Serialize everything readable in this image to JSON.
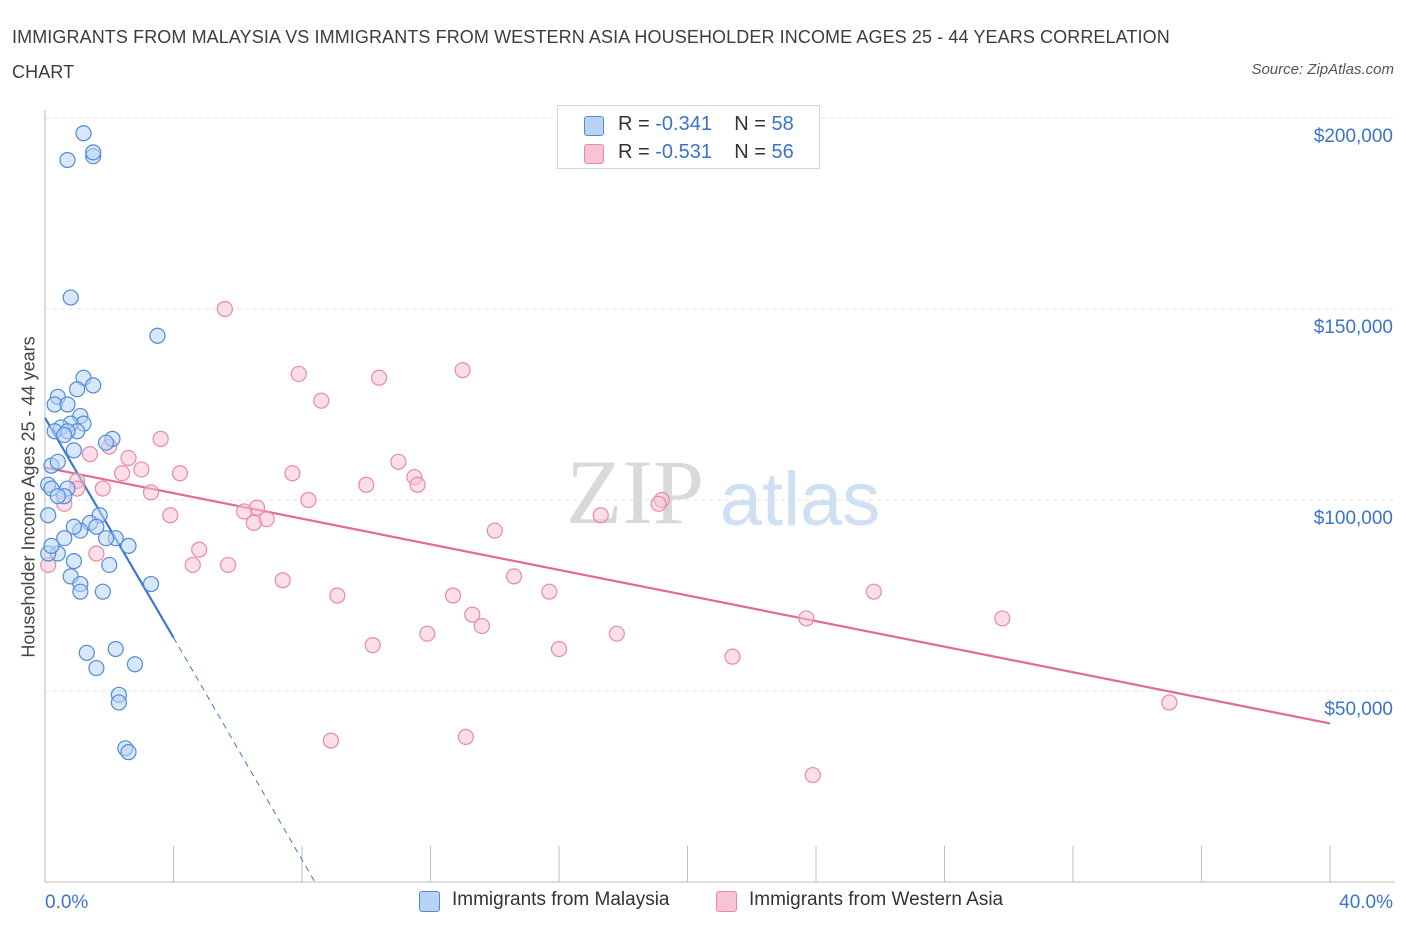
{
  "header": {
    "title": "IMMIGRANTS FROM MALAYSIA VS IMMIGRANTS FROM WESTERN ASIA HOUSEHOLDER INCOME AGES 25 - 44 YEARS CORRELATION CHART",
    "source": "Source: ZipAtlas.com"
  },
  "watermark": {
    "zip": "ZIP",
    "atlas": "atlas"
  },
  "legend": {
    "r_label": "R =",
    "n_label": "N =",
    "malaysia": {
      "r": "-0.341",
      "n": "58"
    },
    "western_asia": {
      "r": "-0.531",
      "n": "56"
    }
  },
  "colors": {
    "malaysia_fill": "#b9d3f5",
    "malaysia_stroke": "#4f8bd8",
    "malaysia_line": "#3a78d2",
    "western_asia_fill": "#f7c3d5",
    "western_asia_stroke": "#e889aa",
    "western_asia_line": "#e2699a",
    "axis_label": "#3b74c9",
    "grid": "#e3e3e3"
  },
  "chart_data": {
    "type": "scatter",
    "title": "IMMIGRANTS FROM MALAYSIA VS IMMIGRANTS FROM WESTERN ASIA HOUSEHOLDER INCOME AGES 25 - 44 YEARS CORRELATION CHART",
    "xlabel": "",
    "ylabel": "Householder Income Ages 25 - 44 years",
    "xlim": [
      0,
      40
    ],
    "ylim": [
      0,
      200000
    ],
    "x_tick_labels": [
      "0.0%",
      "40.0%"
    ],
    "y_ticks": [
      50000,
      100000,
      150000,
      200000
    ],
    "y_tick_labels": [
      "$50,000",
      "$100,000",
      "$150,000",
      "$200,000"
    ],
    "grid": true,
    "legend_position": "top-center",
    "series": [
      {
        "name": "Immigrants from Malaysia",
        "r": -0.341,
        "n": 58,
        "trend": {
          "x": [
            0.0,
            4.0
          ],
          "y": [
            121500,
            64000
          ],
          "dashed_extension": {
            "x": [
              4.0,
              8.4
            ],
            "y": [
              64000,
              0
            ]
          }
        },
        "points": [
          [
            1.2,
            196000
          ],
          [
            0.7,
            189000
          ],
          [
            1.5,
            190000
          ],
          [
            1.5,
            191000
          ],
          [
            0.8,
            153000
          ],
          [
            3.5,
            143000
          ],
          [
            1.2,
            132000
          ],
          [
            1.5,
            130000
          ],
          [
            1.0,
            129000
          ],
          [
            0.4,
            127000
          ],
          [
            0.3,
            125000
          ],
          [
            0.7,
            125000
          ],
          [
            1.1,
            122000
          ],
          [
            1.2,
            120000
          ],
          [
            0.8,
            120000
          ],
          [
            0.5,
            119000
          ],
          [
            1.0,
            118000
          ],
          [
            0.3,
            118000
          ],
          [
            0.7,
            118000
          ],
          [
            0.6,
            117000
          ],
          [
            2.1,
            116000
          ],
          [
            0.9,
            113000
          ],
          [
            0.2,
            109000
          ],
          [
            0.4,
            110000
          ],
          [
            0.1,
            104000
          ],
          [
            0.2,
            103000
          ],
          [
            0.7,
            103000
          ],
          [
            0.6,
            101000
          ],
          [
            1.7,
            96000
          ],
          [
            1.4,
            94000
          ],
          [
            1.6,
            93000
          ],
          [
            0.1,
            96000
          ],
          [
            1.1,
            92000
          ],
          [
            0.9,
            93000
          ],
          [
            0.6,
            90000
          ],
          [
            2.2,
            90000
          ],
          [
            2.6,
            88000
          ],
          [
            1.9,
            90000
          ],
          [
            0.4,
            86000
          ],
          [
            0.9,
            84000
          ],
          [
            0.1,
            86000
          ],
          [
            2.0,
            83000
          ],
          [
            0.8,
            80000
          ],
          [
            1.1,
            78000
          ],
          [
            3.3,
            78000
          ],
          [
            1.1,
            76000
          ],
          [
            1.8,
            76000
          ],
          [
            1.3,
            60000
          ],
          [
            2.2,
            61000
          ],
          [
            1.6,
            56000
          ],
          [
            2.8,
            57000
          ],
          [
            2.3,
            49000
          ],
          [
            2.3,
            47000
          ],
          [
            2.5,
            35000
          ],
          [
            2.6,
            34000
          ],
          [
            0.4,
            101000
          ],
          [
            1.9,
            115000
          ],
          [
            0.2,
            88000
          ]
        ]
      },
      {
        "name": "Immigrants from Western Asia",
        "r": -0.531,
        "n": 56,
        "trend": {
          "x": [
            0.0,
            40.0
          ],
          "y": [
            108500,
            41500
          ]
        },
        "points": [
          [
            5.6,
            150000
          ],
          [
            13.0,
            134000
          ],
          [
            7.9,
            133000
          ],
          [
            10.4,
            132000
          ],
          [
            8.6,
            126000
          ],
          [
            3.6,
            116000
          ],
          [
            2.0,
            114000
          ],
          [
            1.4,
            112000
          ],
          [
            2.6,
            111000
          ],
          [
            11.0,
            110000
          ],
          [
            3.0,
            108000
          ],
          [
            4.2,
            107000
          ],
          [
            7.7,
            107000
          ],
          [
            2.4,
            107000
          ],
          [
            11.5,
            106000
          ],
          [
            1.0,
            105000
          ],
          [
            10.0,
            104000
          ],
          [
            11.6,
            104000
          ],
          [
            1.8,
            103000
          ],
          [
            3.3,
            102000
          ],
          [
            8.2,
            100000
          ],
          [
            19.2,
            100000
          ],
          [
            19.1,
            99000
          ],
          [
            6.6,
            98000
          ],
          [
            6.2,
            97000
          ],
          [
            17.3,
            96000
          ],
          [
            3.9,
            96000
          ],
          [
            6.9,
            95000
          ],
          [
            6.5,
            94000
          ],
          [
            14.0,
            92000
          ],
          [
            4.8,
            87000
          ],
          [
            1.6,
            86000
          ],
          [
            4.6,
            83000
          ],
          [
            5.7,
            83000
          ],
          [
            0.1,
            83000
          ],
          [
            7.4,
            79000
          ],
          [
            14.6,
            80000
          ],
          [
            15.7,
            76000
          ],
          [
            9.1,
            75000
          ],
          [
            12.7,
            75000
          ],
          [
            25.8,
            76000
          ],
          [
            13.3,
            70000
          ],
          [
            23.7,
            69000
          ],
          [
            29.8,
            69000
          ],
          [
            13.6,
            67000
          ],
          [
            11.9,
            65000
          ],
          [
            17.8,
            65000
          ],
          [
            10.2,
            62000
          ],
          [
            16.0,
            61000
          ],
          [
            21.4,
            59000
          ],
          [
            35.0,
            47000
          ],
          [
            13.1,
            38000
          ],
          [
            8.9,
            37000
          ],
          [
            23.9,
            28000
          ],
          [
            1.0,
            103000
          ],
          [
            0.6,
            99000
          ]
        ]
      }
    ]
  }
}
